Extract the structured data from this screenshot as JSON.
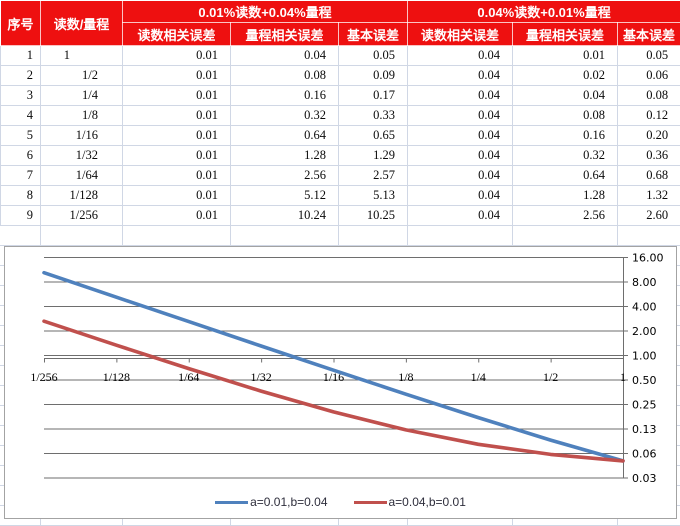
{
  "table": {
    "corner_headers": [
      "序号",
      "读数/量程"
    ],
    "group_headers": [
      "0.01%读数+0.04%量程",
      "0.04%读数+0.01%量程"
    ],
    "sub_headers": [
      "读数相关误差",
      "量程相关误差",
      "基本误差",
      "读数相关误差",
      "量程相关误差",
      "基本误差"
    ],
    "rows": [
      [
        "1",
        "1",
        "0.01",
        "0.04",
        "0.05",
        "0.04",
        "0.01",
        "0.05"
      ],
      [
        "2",
        "1/2",
        "0.01",
        "0.08",
        "0.09",
        "0.04",
        "0.02",
        "0.06"
      ],
      [
        "3",
        "1/4",
        "0.01",
        "0.16",
        "0.17",
        "0.04",
        "0.04",
        "0.08"
      ],
      [
        "4",
        "1/8",
        "0.01",
        "0.32",
        "0.33",
        "0.04",
        "0.08",
        "0.12"
      ],
      [
        "5",
        "1/16",
        "0.01",
        "0.64",
        "0.65",
        "0.04",
        "0.16",
        "0.20"
      ],
      [
        "6",
        "1/32",
        "0.01",
        "1.28",
        "1.29",
        "0.04",
        "0.32",
        "0.36"
      ],
      [
        "7",
        "1/64",
        "0.01",
        "2.56",
        "2.57",
        "0.04",
        "0.64",
        "0.68"
      ],
      [
        "8",
        "1/128",
        "0.01",
        "5.12",
        "5.13",
        "0.04",
        "1.28",
        "1.32"
      ],
      [
        "9",
        "1/256",
        "0.01",
        "10.24",
        "10.25",
        "0.04",
        "2.56",
        "2.60"
      ]
    ]
  },
  "chart_data": {
    "type": "line",
    "title": "",
    "x_categories": [
      "1/256",
      "1/128",
      "1/64",
      "1/32",
      "1/16",
      "1/8",
      "1/4",
      "1/2",
      "1"
    ],
    "y_tick_labels": [
      "16.00",
      "8.00",
      "4.00",
      "2.00",
      "1.00",
      "0.50",
      "0.25",
      "0.13",
      "0.06",
      "0.03"
    ],
    "y_scale": "log2",
    "y_top": 16,
    "y_bottom": 0.03125,
    "grid": true,
    "legend_position": "bottom",
    "series": [
      {
        "name": "a=0.01,b=0.04",
        "color": "#4f81bd",
        "values": [
          10.25,
          5.13,
          2.57,
          1.29,
          0.65,
          0.33,
          0.17,
          0.09,
          0.05
        ]
      },
      {
        "name": "a=0.04,b=0.01",
        "color": "#c0504d",
        "values": [
          2.6,
          1.32,
          0.68,
          0.36,
          0.2,
          0.12,
          0.08,
          0.06,
          0.05
        ]
      }
    ]
  },
  "colors": {
    "header_bg": "#ee1010",
    "header_text": "#ffffff",
    "sheet_grid": "#d0d7e5",
    "chart_border": "#a3a3a3",
    "chart_grid": "#6e6e6e",
    "axis_text": "#000000"
  }
}
